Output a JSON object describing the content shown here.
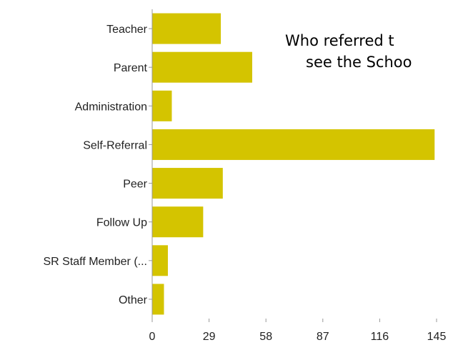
{
  "chart_data": {
    "type": "bar",
    "orientation": "horizontal",
    "categories": [
      "Teacher",
      "Parent",
      "Administration",
      "Self-Referral",
      "Peer",
      "Follow Up",
      "SR Staff Member (...",
      "Other"
    ],
    "values": [
      35,
      51,
      10,
      144,
      36,
      26,
      8,
      6
    ],
    "xticks": [
      "0",
      "29",
      "58",
      "87",
      "116",
      "145"
    ],
    "xlim": [
      0,
      145
    ],
    "bar_color": "#d4c400",
    "grid": false,
    "legend": "none"
  },
  "overlay": {
    "title_line1": "Who referred t",
    "title_line2": "see the Schoo"
  }
}
